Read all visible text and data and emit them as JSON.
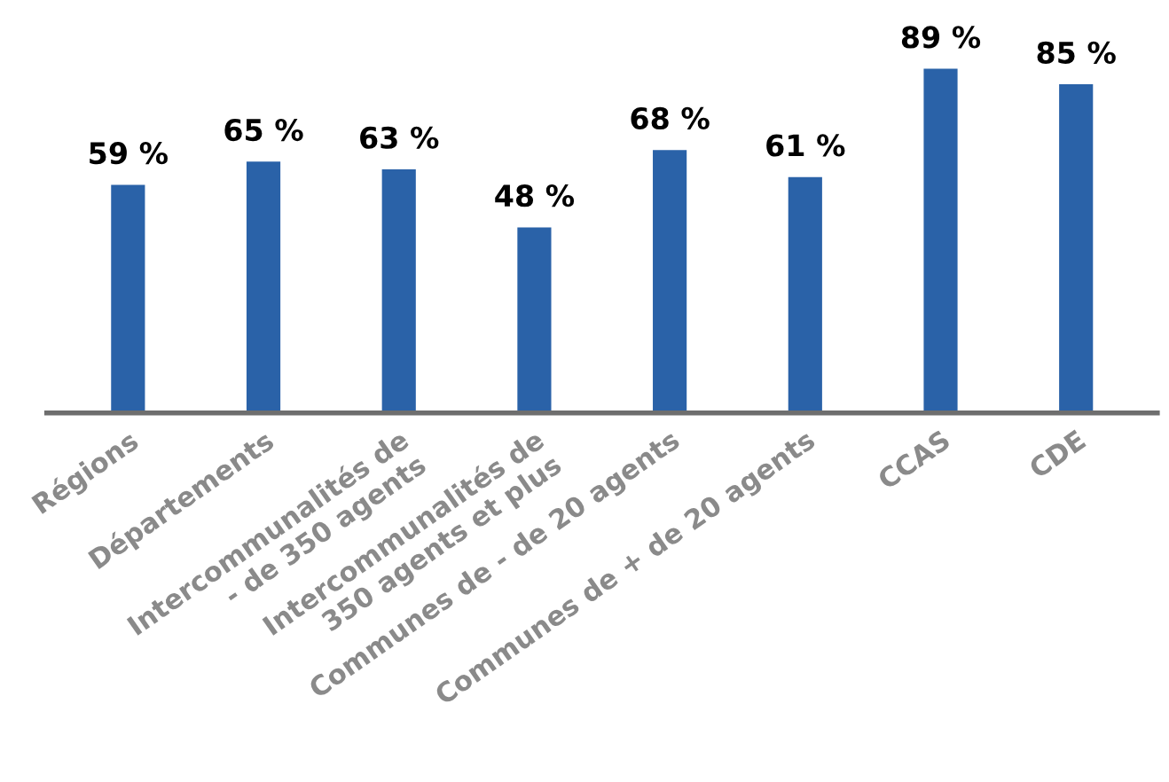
{
  "chart_data": {
    "type": "bar",
    "categories": [
      "Régions",
      "Départements",
      "Intercommunalités de\n- de 350 agents",
      "Intercommunalités de\n350 agents et plus",
      "Communes de - de 20 agents",
      "Communes de + de 20 agents",
      "CCAS",
      "CDE"
    ],
    "values": [
      59,
      65,
      63,
      48,
      68,
      61,
      89,
      85
    ],
    "value_labels": [
      "59 %",
      "65 %",
      "63 %",
      "48 %",
      "68 %",
      "61 %",
      "89 %",
      "85 %"
    ],
    "color": "#2a62a8",
    "tick_labels": "x",
    "grid": false,
    "legend": false
  }
}
